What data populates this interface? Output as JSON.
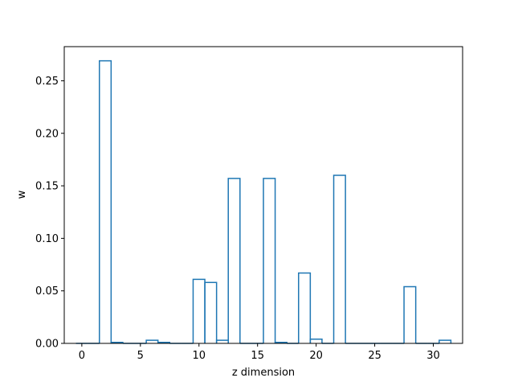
{
  "chart_data": {
    "type": "bar",
    "style": "step-histogram",
    "title": "",
    "xlabel": "z dimension",
    "ylabel": "w",
    "xlim": [
      -1.5,
      32.5
    ],
    "ylim": [
      0,
      0.2825
    ],
    "x_ticks": [
      0,
      5,
      10,
      15,
      20,
      25,
      30
    ],
    "y_ticks": [
      0.0,
      0.05,
      0.1,
      0.15,
      0.2,
      0.25
    ],
    "x_tick_labels": [
      "0",
      "5",
      "10",
      "15",
      "20",
      "25",
      "30"
    ],
    "y_tick_labels": [
      "0.00",
      "0.05",
      "0.10",
      "0.15",
      "0.20",
      "0.25"
    ],
    "grid": false,
    "line_color": "#1f77b4",
    "categories": [
      0,
      1,
      2,
      3,
      4,
      5,
      6,
      7,
      8,
      9,
      10,
      11,
      12,
      13,
      14,
      15,
      16,
      17,
      18,
      19,
      20,
      21,
      22,
      23,
      24,
      25,
      26,
      27,
      28,
      29,
      30,
      31
    ],
    "values": [
      0.0,
      0.0,
      0.269,
      0.001,
      0.0,
      0.0,
      0.003,
      0.001,
      0.0,
      0.0,
      0.061,
      0.058,
      0.003,
      0.157,
      0.0,
      0.0,
      0.157,
      0.001,
      0.0,
      0.067,
      0.004,
      0.0,
      0.16,
      0.0,
      0.0,
      0.0,
      0.0,
      0.0,
      0.054,
      0.0,
      0.0,
      0.003
    ]
  }
}
